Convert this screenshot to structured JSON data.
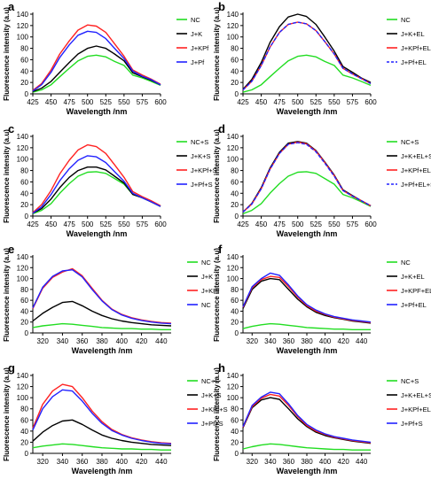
{
  "figure": {
    "ylabel": "Fluorescence intensity (a.u)",
    "xlabel": "Wavelength /nm"
  },
  "colors": {
    "green": "#22dd22",
    "black": "#000000",
    "red": "#ff2222",
    "blue": "#2222ff"
  },
  "chart_data": [
    {
      "panel": "a",
      "type": "line",
      "xlabel": "Wavelength /nm",
      "ylabel": "Fluorescence intensity (a.u)",
      "xlim": [
        425,
        600
      ],
      "ylim": [
        0,
        140
      ],
      "xticks": [
        425,
        450,
        475,
        500,
        525,
        550,
        575,
        600
      ],
      "yticks": [
        0,
        20,
        40,
        60,
        80,
        100,
        120,
        140
      ],
      "x": [
        425,
        437,
        450,
        462,
        475,
        487,
        500,
        512,
        525,
        537,
        550,
        562,
        575,
        587,
        600
      ],
      "series": [
        {
          "name": "NC",
          "color": "green",
          "dashed": false,
          "values": [
            3,
            7,
            16,
            30,
            45,
            58,
            66,
            68,
            65,
            57,
            50,
            33,
            28,
            22,
            15
          ]
        },
        {
          "name": "J+K",
          "color": "black",
          "dashed": false,
          "values": [
            4,
            10,
            22,
            38,
            55,
            70,
            80,
            84,
            80,
            70,
            58,
            37,
            30,
            24,
            16
          ]
        },
        {
          "name": "J+KPf",
          "color": "red",
          "dashed": false,
          "values": [
            6,
            18,
            42,
            70,
            93,
            112,
            121,
            119,
            108,
            88,
            66,
            42,
            33,
            26,
            17
          ]
        },
        {
          "name": "J+Pf",
          "color": "blue",
          "dashed": false,
          "values": [
            5,
            16,
            38,
            64,
            86,
            103,
            110,
            108,
            97,
            80,
            62,
            40,
            31,
            25,
            16
          ]
        }
      ]
    },
    {
      "panel": "b",
      "type": "line",
      "xlabel": "Wavelength /nm",
      "ylabel": "Fluorescence intensity (a.u)",
      "xlim": [
        425,
        600
      ],
      "ylim": [
        0,
        140
      ],
      "xticks": [
        425,
        450,
        475,
        500,
        525,
        550,
        575,
        600
      ],
      "yticks": [
        0,
        20,
        40,
        60,
        80,
        100,
        120,
        140
      ],
      "x": [
        425,
        437,
        450,
        462,
        475,
        487,
        500,
        512,
        525,
        537,
        550,
        562,
        575,
        587,
        600
      ],
      "series": [
        {
          "name": "NC",
          "color": "green",
          "dashed": false,
          "values": [
            3,
            7,
            16,
            30,
            45,
            58,
            66,
            68,
            65,
            57,
            50,
            33,
            28,
            22,
            15
          ]
        },
        {
          "name": "J+K+EL",
          "color": "black",
          "dashed": false,
          "values": [
            8,
            25,
            55,
            90,
            118,
            135,
            140,
            136,
            122,
            100,
            75,
            48,
            38,
            28,
            20
          ]
        },
        {
          "name": "J+KPf+EL",
          "color": "red",
          "dashed": false,
          "values": [
            7,
            22,
            50,
            82,
            108,
            122,
            126,
            123,
            111,
            92,
            70,
            45,
            35,
            27,
            18
          ]
        },
        {
          "name": "J+Pf+EL",
          "color": "blue",
          "dashed": true,
          "values": [
            7,
            22,
            50,
            82,
            108,
            122,
            126,
            123,
            111,
            92,
            70,
            45,
            35,
            27,
            18
          ]
        }
      ]
    },
    {
      "panel": "c",
      "type": "line",
      "xlabel": "Wavelength /nm",
      "ylabel": "Fluorescence intensity (a.u)",
      "xlim": [
        425,
        600
      ],
      "ylim": [
        0,
        140
      ],
      "xticks": [
        425,
        450,
        475,
        500,
        525,
        550,
        575,
        600
      ],
      "yticks": [
        0,
        20,
        40,
        60,
        80,
        100,
        120,
        140
      ],
      "x": [
        425,
        437,
        450,
        462,
        475,
        487,
        500,
        512,
        525,
        537,
        550,
        562,
        575,
        587,
        600
      ],
      "series": [
        {
          "name": "NC+S",
          "color": "green",
          "dashed": false,
          "values": [
            4,
            10,
            22,
            40,
            57,
            70,
            77,
            78,
            75,
            66,
            56,
            38,
            32,
            25,
            17
          ]
        },
        {
          "name": "J+K+S",
          "color": "black",
          "dashed": false,
          "values": [
            5,
            13,
            30,
            50,
            68,
            80,
            86,
            86,
            81,
            70,
            58,
            38,
            32,
            25,
            17
          ]
        },
        {
          "name": "J+KPf+S",
          "color": "red",
          "dashed": false,
          "values": [
            6,
            20,
            45,
            74,
            98,
            116,
            125,
            122,
            110,
            90,
            68,
            43,
            34,
            27,
            18
          ]
        },
        {
          "name": "J+Pf+S",
          "color": "blue",
          "dashed": false,
          "values": [
            5,
            16,
            38,
            62,
            83,
            98,
            106,
            104,
            94,
            78,
            61,
            40,
            32,
            25,
            17
          ]
        }
      ]
    },
    {
      "panel": "d",
      "type": "line",
      "xlabel": "Wavelength /nm",
      "ylabel": "Fluorescence intensity (a.u)",
      "xlim": [
        425,
        600
      ],
      "ylim": [
        0,
        140
      ],
      "xticks": [
        425,
        450,
        475,
        500,
        525,
        550,
        575,
        600
      ],
      "yticks": [
        0,
        20,
        40,
        60,
        80,
        100,
        120,
        140
      ],
      "x": [
        425,
        437,
        450,
        462,
        475,
        487,
        500,
        512,
        525,
        537,
        550,
        562,
        575,
        587,
        600
      ],
      "series": [
        {
          "name": "NC+S",
          "color": "green",
          "dashed": false,
          "values": [
            4,
            10,
            22,
            40,
            57,
            70,
            77,
            78,
            75,
            66,
            56,
            38,
            32,
            25,
            17
          ]
        },
        {
          "name": "J+K+EL+S",
          "color": "black",
          "dashed": false,
          "values": [
            7,
            22,
            50,
            84,
            112,
            128,
            131,
            128,
            115,
            95,
            72,
            46,
            36,
            27,
            18
          ]
        },
        {
          "name": "J+KPf+EL+S",
          "color": "red",
          "dashed": false,
          "values": [
            7,
            21,
            48,
            82,
            110,
            126,
            130,
            127,
            114,
            94,
            71,
            45,
            35,
            27,
            18
          ]
        },
        {
          "name": "J+Pf+EL+S",
          "color": "blue",
          "dashed": true,
          "values": [
            7,
            21,
            48,
            82,
            110,
            126,
            129,
            126,
            113,
            93,
            70,
            45,
            35,
            27,
            18
          ]
        }
      ]
    },
    {
      "panel": "e",
      "type": "line",
      "xlabel": "Wavelength /nm",
      "ylabel": "Fluorescence intensity (a.u)",
      "xlim": [
        310,
        450
      ],
      "ylim": [
        0,
        140
      ],
      "xticks": [
        320,
        340,
        360,
        380,
        400,
        420,
        440
      ],
      "yticks": [
        0,
        20,
        40,
        60,
        80,
        100,
        120,
        140
      ],
      "x": [
        310,
        320,
        330,
        340,
        350,
        360,
        370,
        380,
        390,
        400,
        410,
        420,
        430,
        440,
        450
      ],
      "series": [
        {
          "name": "NC",
          "color": "green",
          "dashed": false,
          "values": [
            10,
            13,
            15,
            17,
            16,
            14,
            12,
            10,
            9,
            8,
            8,
            7,
            7,
            6,
            6
          ]
        },
        {
          "name": "J+K",
          "color": "black",
          "dashed": false,
          "values": [
            22,
            36,
            47,
            56,
            58,
            50,
            40,
            32,
            26,
            22,
            19,
            17,
            15,
            14,
            13
          ]
        },
        {
          "name": "J+KPf",
          "color": "red",
          "dashed": false,
          "values": [
            45,
            82,
            102,
            112,
            118,
            105,
            82,
            60,
            44,
            34,
            28,
            24,
            21,
            19,
            18
          ]
        },
        {
          "name": "NC",
          "color": "blue",
          "dashed": false,
          "values": [
            46,
            84,
            104,
            114,
            116,
            103,
            80,
            59,
            43,
            33,
            27,
            23,
            20,
            18,
            17
          ]
        }
      ]
    },
    {
      "panel": "f",
      "type": "line",
      "xlabel": "Wavelength /nm",
      "ylabel": "Fluorescence intensity (a.u)",
      "xlim": [
        310,
        450
      ],
      "ylim": [
        0,
        140
      ],
      "xticks": [
        320,
        340,
        360,
        380,
        400,
        420,
        440
      ],
      "yticks": [
        0,
        20,
        40,
        60,
        80,
        100,
        120,
        140
      ],
      "x": [
        310,
        320,
        330,
        340,
        350,
        360,
        370,
        380,
        390,
        400,
        410,
        420,
        430,
        440,
        450
      ],
      "series": [
        {
          "name": "NC",
          "color": "green",
          "dashed": false,
          "values": [
            8,
            12,
            15,
            17,
            16,
            14,
            12,
            10,
            9,
            8,
            7,
            7,
            6,
            6,
            6
          ]
        },
        {
          "name": "J+K+EL",
          "color": "black",
          "dashed": false,
          "values": [
            45,
            80,
            95,
            100,
            98,
            80,
            62,
            48,
            38,
            32,
            28,
            25,
            22,
            20,
            18
          ]
        },
        {
          "name": "J+KPF+EL",
          "color": "red",
          "dashed": false,
          "values": [
            47,
            83,
            98,
            104,
            102,
            85,
            66,
            50,
            40,
            34,
            29,
            26,
            23,
            21,
            19
          ]
        },
        {
          "name": "J+Pf+EL",
          "color": "blue",
          "dashed": false,
          "values": [
            48,
            85,
            100,
            110,
            106,
            88,
            68,
            52,
            42,
            35,
            30,
            27,
            24,
            22,
            20
          ]
        }
      ]
    },
    {
      "panel": "g",
      "type": "line",
      "xlabel": "Wavelength /nm",
      "ylabel": "Fluorescence intensity (a.u)",
      "xlim": [
        310,
        450
      ],
      "ylim": [
        0,
        140
      ],
      "xticks": [
        320,
        340,
        360,
        380,
        400,
        420,
        440
      ],
      "yticks": [
        0,
        20,
        40,
        60,
        80,
        100,
        120,
        140
      ],
      "x": [
        310,
        320,
        330,
        340,
        350,
        360,
        370,
        380,
        390,
        400,
        410,
        420,
        430,
        440,
        450
      ],
      "series": [
        {
          "name": "NC+S",
          "color": "green",
          "dashed": false,
          "values": [
            10,
            13,
            15,
            17,
            16,
            14,
            12,
            10,
            9,
            8,
            8,
            7,
            7,
            6,
            6
          ]
        },
        {
          "name": "J+K+S",
          "color": "black",
          "dashed": false,
          "values": [
            22,
            38,
            50,
            58,
            60,
            52,
            42,
            33,
            27,
            23,
            20,
            18,
            16,
            15,
            14
          ]
        },
        {
          "name": "J+KPf+S",
          "color": "red",
          "dashed": false,
          "values": [
            45,
            88,
            112,
            124,
            120,
            100,
            76,
            57,
            43,
            34,
            28,
            24,
            21,
            19,
            18
          ]
        },
        {
          "name": "J+Pf+S",
          "color": "blue",
          "dashed": false,
          "values": [
            42,
            80,
            102,
            114,
            112,
            94,
            72,
            54,
            41,
            33,
            27,
            23,
            20,
            18,
            17
          ]
        }
      ]
    },
    {
      "panel": "h",
      "type": "line",
      "xlabel": "Wavelength /nm",
      "ylabel": "Fluorescence intensity (a.u)",
      "xlim": [
        310,
        450
      ],
      "ylim": [
        0,
        140
      ],
      "xticks": [
        320,
        340,
        360,
        380,
        400,
        420,
        440
      ],
      "yticks": [
        0,
        20,
        40,
        60,
        80,
        100,
        120,
        140
      ],
      "x": [
        310,
        320,
        330,
        340,
        350,
        360,
        370,
        380,
        390,
        400,
        410,
        420,
        430,
        440,
        450
      ],
      "series": [
        {
          "name": "NC+S",
          "color": "green",
          "dashed": false,
          "values": [
            8,
            12,
            15,
            17,
            16,
            14,
            12,
            10,
            9,
            8,
            7,
            7,
            6,
            6,
            6
          ]
        },
        {
          "name": "J+K+EL+S",
          "color": "black",
          "dashed": false,
          "values": [
            46,
            82,
            96,
            100,
            97,
            80,
            62,
            48,
            38,
            32,
            28,
            25,
            22,
            20,
            18
          ]
        },
        {
          "name": "J+KPf+EL+S",
          "color": "red",
          "dashed": false,
          "values": [
            47,
            84,
            99,
            106,
            103,
            86,
            66,
            50,
            40,
            34,
            29,
            26,
            23,
            21,
            19
          ]
        },
        {
          "name": "J+Pf+S",
          "color": "blue",
          "dashed": false,
          "values": [
            48,
            86,
            101,
            110,
            107,
            89,
            68,
            52,
            42,
            35,
            30,
            27,
            24,
            22,
            20
          ]
        }
      ]
    }
  ]
}
